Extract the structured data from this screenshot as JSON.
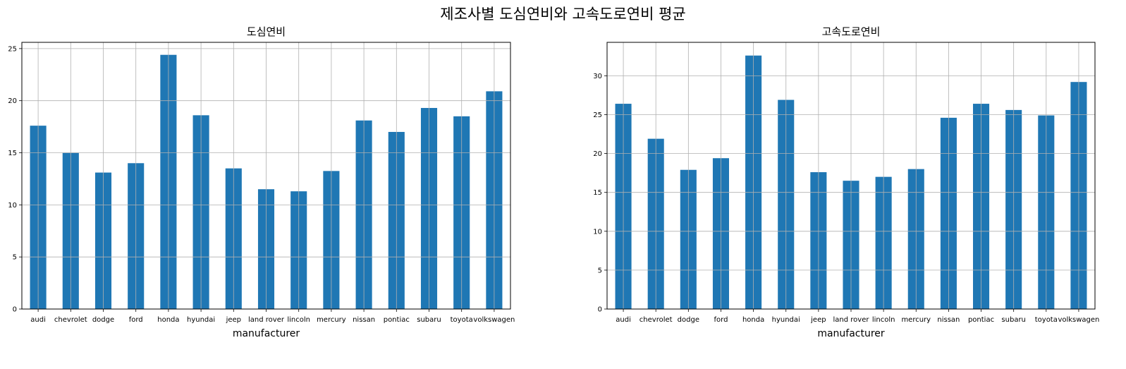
{
  "suptitle": "제조사별 도심연비와 고속도로연비 평균",
  "colors": {
    "bar": "#1f77b4",
    "grid": "#b0b0b0",
    "frame": "#000000"
  },
  "chart_data": [
    {
      "type": "bar",
      "title": "도심연비",
      "xlabel": "manufacturer",
      "ylabel": "",
      "categories": [
        "audi",
        "chevrolet",
        "dodge",
        "ford",
        "honda",
        "hyundai",
        "jeep",
        "land rover",
        "lincoln",
        "mercury",
        "nissan",
        "pontiac",
        "subaru",
        "toyota",
        "volkswagen"
      ],
      "values": [
        17.6,
        15.0,
        13.1,
        14.0,
        24.4,
        18.6,
        13.5,
        11.5,
        11.3,
        13.25,
        18.1,
        17.0,
        19.3,
        18.5,
        20.9
      ],
      "ylim": [
        0,
        25.6
      ],
      "yticks": [
        0,
        5,
        10,
        15,
        20,
        25
      ],
      "grid": true
    },
    {
      "type": "bar",
      "title": "고속도로연비",
      "xlabel": "manufacturer",
      "ylabel": "",
      "categories": [
        "audi",
        "chevrolet",
        "dodge",
        "ford",
        "honda",
        "hyundai",
        "jeep",
        "land rover",
        "lincoln",
        "mercury",
        "nissan",
        "pontiac",
        "subaru",
        "toyota",
        "volkswagen"
      ],
      "values": [
        26.4,
        21.9,
        17.9,
        19.4,
        32.6,
        26.9,
        17.6,
        16.5,
        17.0,
        18.0,
        24.6,
        26.4,
        25.6,
        24.9,
        29.2
      ],
      "ylim": [
        0,
        34.3
      ],
      "yticks": [
        0,
        5,
        10,
        15,
        20,
        25,
        30
      ],
      "grid": true
    }
  ]
}
